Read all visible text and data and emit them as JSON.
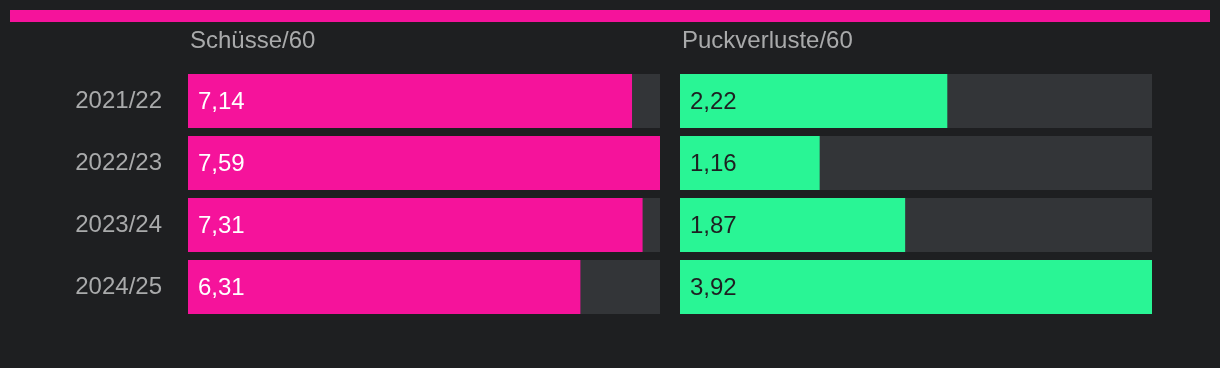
{
  "chart_data": [
    {
      "type": "bar",
      "orientation": "horizontal",
      "title": "Schüsse/60",
      "categories": [
        "2021/22",
        "2022/23",
        "2023/24",
        "2024/25"
      ],
      "values": [
        7.14,
        7.59,
        7.31,
        6.31
      ],
      "value_labels": [
        "7,14",
        "7,59",
        "7,31",
        "6,31"
      ],
      "color": "#f5139b",
      "xlim": [
        0,
        7.59
      ],
      "tick_labels": "y"
    },
    {
      "type": "bar",
      "orientation": "horizontal",
      "title": "Puckverluste/60",
      "categories": [
        "2021/22",
        "2022/23",
        "2023/24",
        "2024/25"
      ],
      "values": [
        2.22,
        1.16,
        1.87,
        3.92
      ],
      "value_labels": [
        "2,22",
        "1,16",
        "1,87",
        "3,92"
      ],
      "color": "#29f595",
      "xlim": [
        0,
        3.92
      ],
      "tick_labels": false
    }
  ]
}
